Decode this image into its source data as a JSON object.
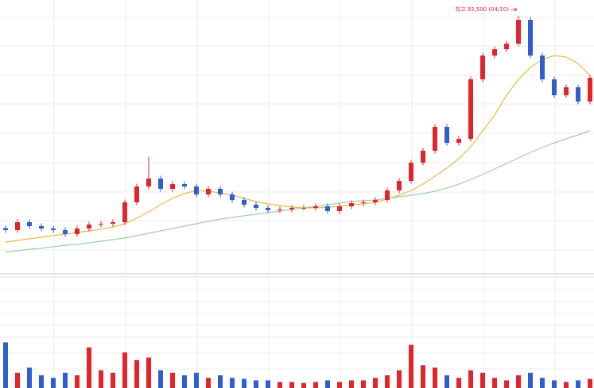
{
  "chart_data": [
    {
      "type": "candlestick",
      "annotation": "최고 92,500 (04/10)",
      "up_color": "#e0262c",
      "down_color": "#2f5fcf",
      "ylim": [
        27500,
        96500
      ],
      "open": [
        39000,
        38500,
        40500,
        39500,
        38900,
        38500,
        37500,
        38900,
        39900,
        40100,
        40500,
        45500,
        49500,
        51500,
        48900,
        50100,
        49500,
        47500,
        48900,
        47500,
        46100,
        44900,
        44100,
        43500,
        43700,
        44100,
        44100,
        44500,
        43300,
        44500,
        45300,
        45500,
        46100,
        48500,
        50900,
        55500,
        58500,
        64500,
        60500,
        61500,
        76500,
        82500,
        84100,
        85500,
        91500,
        82500,
        76500,
        72500,
        74500,
        70900
      ],
      "high": [
        39700,
        41200,
        41200,
        40200,
        39600,
        39200,
        39600,
        40600,
        40800,
        41200,
        46200,
        50200,
        57000,
        52200,
        50800,
        50800,
        50200,
        49600,
        49600,
        48200,
        46800,
        45600,
        44800,
        44400,
        44800,
        44800,
        45200,
        45200,
        45200,
        46000,
        46200,
        46800,
        49200,
        51600,
        56200,
        59200,
        65200,
        65200,
        62200,
        77200,
        83200,
        84800,
        86200,
        92500,
        92200,
        83200,
        77200,
        75200,
        75200,
        77600
      ],
      "low": [
        37800,
        37800,
        38800,
        38200,
        37800,
        36800,
        36800,
        38200,
        39200,
        39400,
        39800,
        44800,
        48800,
        48200,
        48200,
        48800,
        46800,
        46800,
        46800,
        45400,
        44200,
        43400,
        42800,
        42800,
        43000,
        43400,
        43400,
        42600,
        42600,
        43800,
        44600,
        44800,
        45400,
        47800,
        50200,
        54800,
        57800,
        59800,
        59800,
        60800,
        75800,
        81800,
        83400,
        84800,
        81800,
        75800,
        71800,
        71800,
        70200,
        70200
      ],
      "close": [
        38500,
        40500,
        39500,
        38900,
        38500,
        37500,
        38900,
        39900,
        40100,
        40500,
        45500,
        49500,
        51500,
        48900,
        50100,
        49500,
        47500,
        48900,
        47500,
        46100,
        44900,
        44100,
        43500,
        43700,
        44100,
        44100,
        44500,
        43300,
        44500,
        45300,
        45500,
        46100,
        48500,
        50900,
        55500,
        58500,
        64500,
        60500,
        61500,
        76500,
        82500,
        84100,
        85500,
        91500,
        82500,
        76500,
        72500,
        74500,
        70900,
        76900
      ],
      "lines": [
        {
          "color": "#e9b949",
          "values": [
            35500,
            35900,
            36300,
            36700,
            37100,
            37500,
            37900,
            38300,
            38700,
            39300,
            40100,
            41500,
            43100,
            44900,
            46500,
            47700,
            48500,
            48300,
            47900,
            47300,
            46500,
            45700,
            45100,
            44700,
            44300,
            44100,
            44100,
            44300,
            44500,
            44900,
            45100,
            45500,
            46300,
            47300,
            48500,
            50100,
            52100,
            54100,
            56500,
            59500,
            63500,
            67500,
            72500,
            76500,
            79500,
            81500,
            82500,
            82100,
            80500,
            77500
          ]
        },
        {
          "color": "#9fcfa8",
          "values": [
            32900,
            33300,
            33700,
            33900,
            34300,
            34700,
            34900,
            35300,
            35700,
            36100,
            36500,
            37100,
            37700,
            38300,
            38900,
            39500,
            40100,
            40700,
            41300,
            41700,
            42100,
            42500,
            42900,
            43300,
            43700,
            44100,
            44500,
            44900,
            45300,
            45700,
            45900,
            46100,
            46500,
            46900,
            47300,
            47700,
            48300,
            49100,
            50100,
            51300,
            52500,
            53900,
            55300,
            56700,
            58100,
            59300,
            60500,
            61500,
            62500,
            63500
          ]
        }
      ]
    },
    {
      "type": "volume",
      "ylim": [
        0,
        100
      ],
      "values": [
        90,
        30,
        40,
        25,
        20,
        30,
        25,
        80,
        35,
        30,
        70,
        55,
        60,
        35,
        30,
        25,
        30,
        20,
        25,
        20,
        18,
        15,
        15,
        12,
        12,
        10,
        12,
        15,
        12,
        15,
        15,
        20,
        25,
        35,
        85,
        45,
        40,
        25,
        20,
        35,
        30,
        20,
        15,
        25,
        30,
        20,
        15,
        12,
        15,
        18
      ]
    }
  ]
}
